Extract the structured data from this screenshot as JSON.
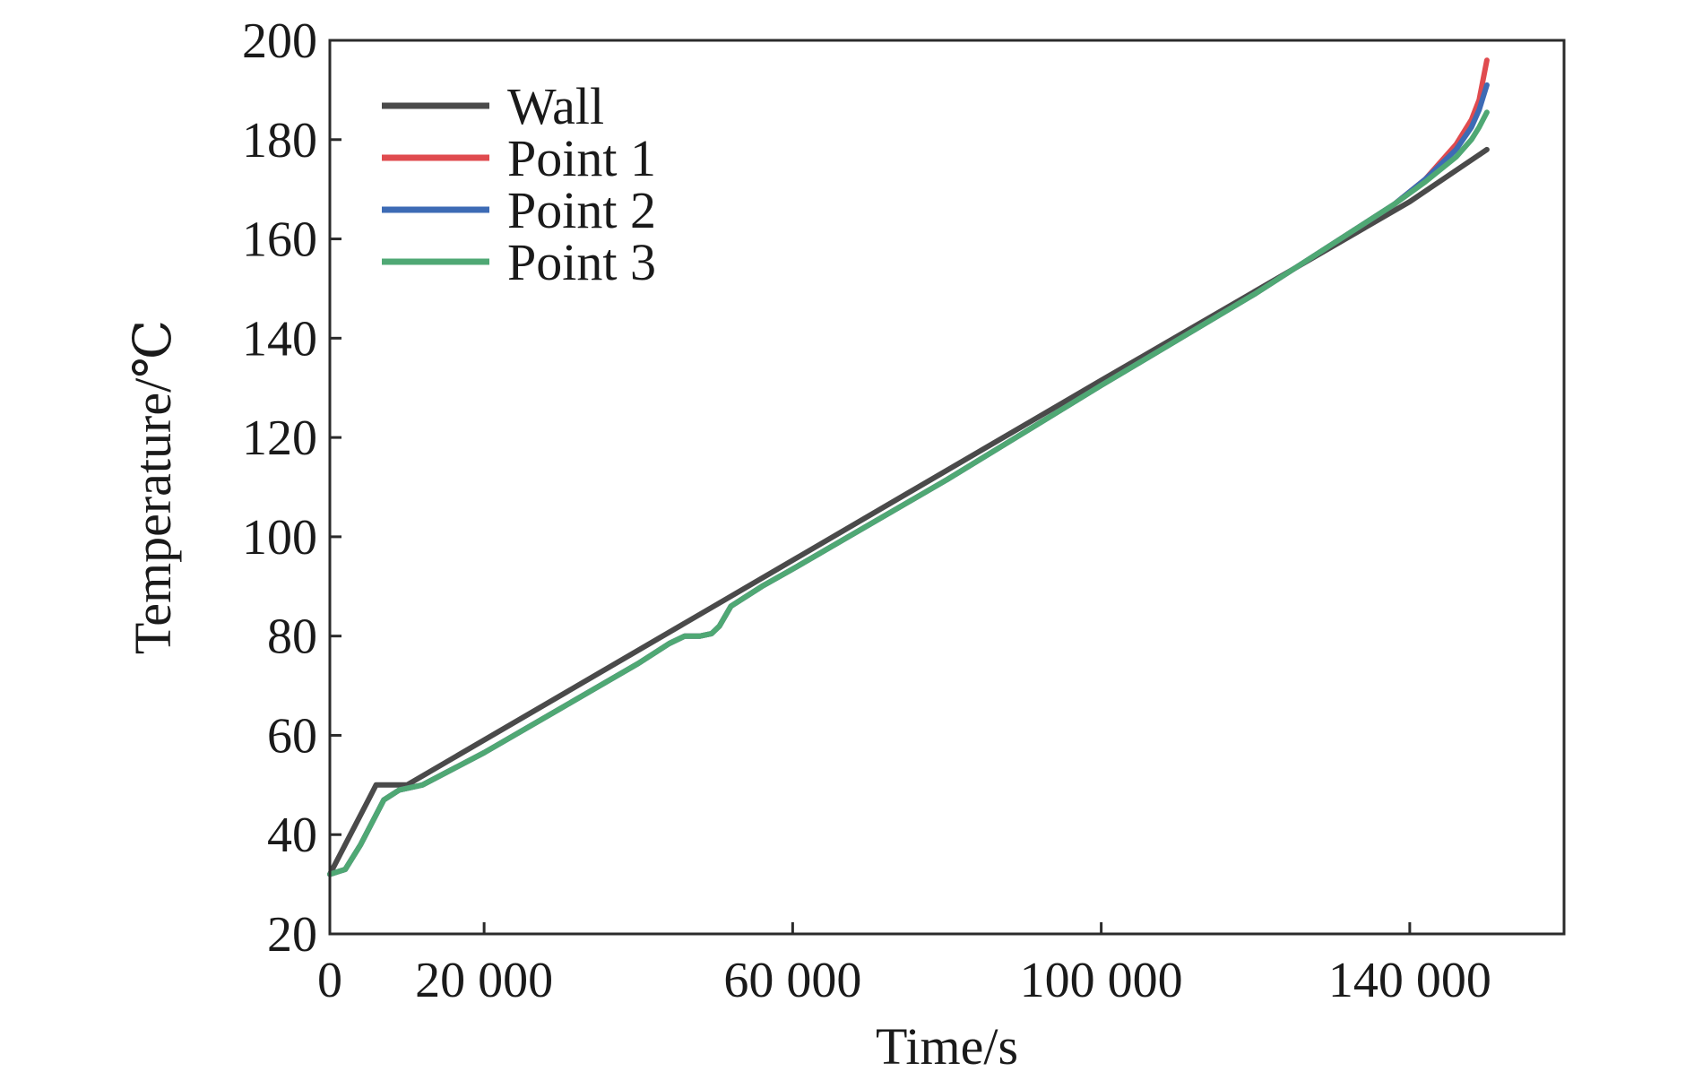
{
  "chart_data": {
    "type": "line",
    "xlabel": "Time/s",
    "ylabel": "Temperature/℃",
    "xlim": [
      0,
      160000
    ],
    "ylim": [
      20,
      200
    ],
    "xticks": [
      0,
      20000,
      60000,
      100000,
      140000
    ],
    "xtick_labels": [
      "0",
      "20 000",
      "60 000",
      "100 000",
      "140 000"
    ],
    "yticks": [
      20,
      40,
      60,
      80,
      100,
      120,
      140,
      160,
      180,
      200
    ],
    "ytick_labels": [
      "20",
      "40",
      "60",
      "80",
      "100",
      "120",
      "140",
      "160",
      "180",
      "200"
    ],
    "grid": false,
    "legend_position": "top-left",
    "series": [
      {
        "name": "Wall",
        "color": "#4a4a4a",
        "x": [
          0,
          5000,
          6000,
          10000,
          50000,
          100000,
          140000,
          150000
        ],
        "y": [
          32,
          47,
          50,
          50,
          86.2,
          131.5,
          167.5,
          178
        ]
      },
      {
        "name": "Point 1",
        "color": "#e04b4f",
        "x": [
          0,
          2000,
          4000,
          6000,
          7000,
          9000,
          12000,
          20000,
          30000,
          40000,
          44000,
          46000,
          48000,
          49500,
          50500,
          52000,
          56000,
          60000,
          80000,
          100000,
          120000,
          138000,
          142000,
          146000,
          148000,
          149000,
          150000
        ],
        "y": [
          32,
          33,
          38,
          44,
          47,
          49,
          50,
          56.5,
          65.5,
          74.5,
          78.5,
          80,
          80,
          80.5,
          82,
          86,
          90,
          93.5,
          111.5,
          130.5,
          149,
          167,
          172,
          179,
          184,
          188,
          196
        ]
      },
      {
        "name": "Point 2",
        "color": "#3d6bb5",
        "x": [
          0,
          2000,
          4000,
          6000,
          7000,
          9000,
          12000,
          20000,
          30000,
          40000,
          44000,
          46000,
          48000,
          49500,
          50500,
          52000,
          56000,
          60000,
          80000,
          100000,
          120000,
          138000,
          142000,
          146000,
          148000,
          149000,
          150000
        ],
        "y": [
          32,
          33,
          38,
          44,
          47,
          49,
          50,
          56.5,
          65.5,
          74.5,
          78.5,
          80,
          80,
          80.5,
          82,
          86,
          90,
          93.5,
          111.5,
          130.5,
          149,
          167,
          172,
          178,
          182.5,
          186,
          191
        ]
      },
      {
        "name": "Point 3",
        "color": "#4fa874",
        "x": [
          0,
          2000,
          4000,
          6000,
          7000,
          9000,
          12000,
          20000,
          30000,
          40000,
          44000,
          46000,
          48000,
          49500,
          50500,
          52000,
          56000,
          60000,
          80000,
          100000,
          120000,
          138000,
          142000,
          146000,
          148000,
          149000,
          150000
        ],
        "y": [
          32,
          33,
          38,
          44,
          47,
          49,
          50,
          56.5,
          65.5,
          74.5,
          78.5,
          80,
          80,
          80.5,
          82,
          86,
          90,
          93.5,
          111.5,
          130.5,
          149,
          167,
          171.5,
          176.5,
          180,
          182.5,
          185.5
        ]
      }
    ]
  }
}
